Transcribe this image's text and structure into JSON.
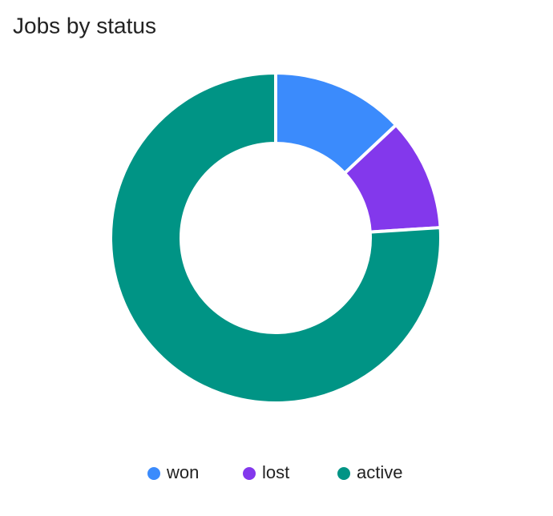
{
  "chart_data": {
    "type": "donut",
    "title": "Jobs by status",
    "categories": [
      "won",
      "lost",
      "active"
    ],
    "values": [
      13,
      11,
      76
    ],
    "colors": [
      "#3b8bfc",
      "#8338ec",
      "#009485"
    ],
    "legend": "bottom"
  }
}
